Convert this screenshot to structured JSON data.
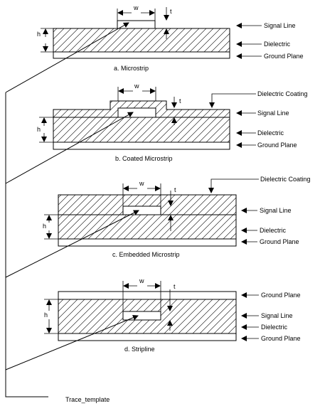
{
  "dim": {
    "w": "w",
    "t": "t",
    "h": "h"
  },
  "labels": {
    "signal_line": "Signal Line",
    "dielectric": "Dielectric",
    "ground_plane": "Ground Plane",
    "dielectric_coating": "Dielectric Coating"
  },
  "captions": {
    "a": "a.  Microstrip",
    "b": "b.  Coated Microstrip",
    "c": "c.  Embedded Microstrip",
    "d": "d.  Stripline"
  },
  "template_label": "Trace_template",
  "colors": {
    "stroke": "#000000",
    "fill": "#ffffff"
  }
}
